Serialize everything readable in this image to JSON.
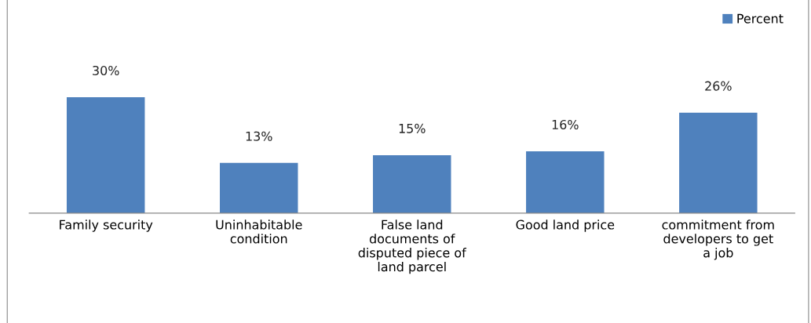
{
  "chart_data": {
    "type": "bar",
    "categories": [
      "Family security",
      "Uninhabitable\ncondition",
      "False land\ndocuments of\ndisputed piece of\nland parcel",
      "Good land price",
      "commitment from\ndevelopers to get\na job"
    ],
    "series": [
      {
        "name": "Percent",
        "color": "#4f81bd",
        "values": [
          30,
          13,
          15,
          16,
          26
        ],
        "value_labels": [
          "30%",
          "13%",
          "15%",
          "16%",
          "26%"
        ]
      }
    ],
    "legend": "top right"
  }
}
